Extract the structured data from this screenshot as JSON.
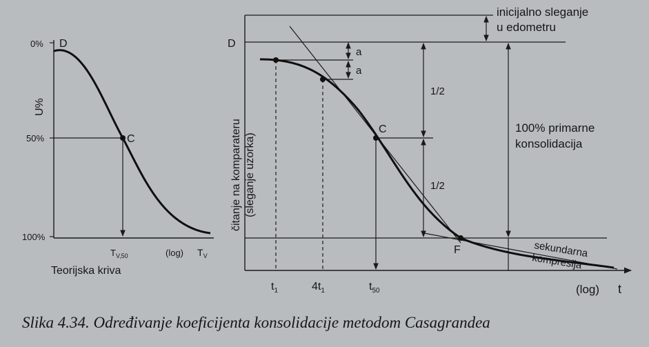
{
  "left_plot": {
    "y_label": "U%",
    "tick_0": "0%",
    "tick_50": "50%",
    "tick_100": "100%",
    "label_d": "D",
    "label_c": "C",
    "x_label_tv50": "T",
    "x_label_tv50_sub": "V,50",
    "x_label_log": "(log)",
    "x_label_tv": "T",
    "x_label_tv_sub": "V",
    "title": "Teorijska kriva"
  },
  "right_plot": {
    "label_d": "D",
    "label_c": "C",
    "label_f": "F",
    "label_a1": "a",
    "label_a2": "a",
    "label_half1": "1/2",
    "label_half2": "1/2",
    "initial_line1": "inicijalno sleganje",
    "initial_line2": "u edometru",
    "primary_line1": "100% primarne",
    "primary_line2": "konsolidacija",
    "secondary_line1": "sekundarna",
    "secondary_line2": "kompresija",
    "y_label_line1": "čitanje na komparateru",
    "y_label_line2": "(sleganje uzorka)",
    "x_t1": "t",
    "x_t1_sub": "1",
    "x_4t1": "4t",
    "x_4t1_sub": "1",
    "x_t50": "t",
    "x_t50_sub": "50",
    "x_log": "(log)",
    "x_t": "t"
  },
  "caption": "Slika 4.34. Određivanje koeficijenta konsolidacije metodom Casagrandea"
}
